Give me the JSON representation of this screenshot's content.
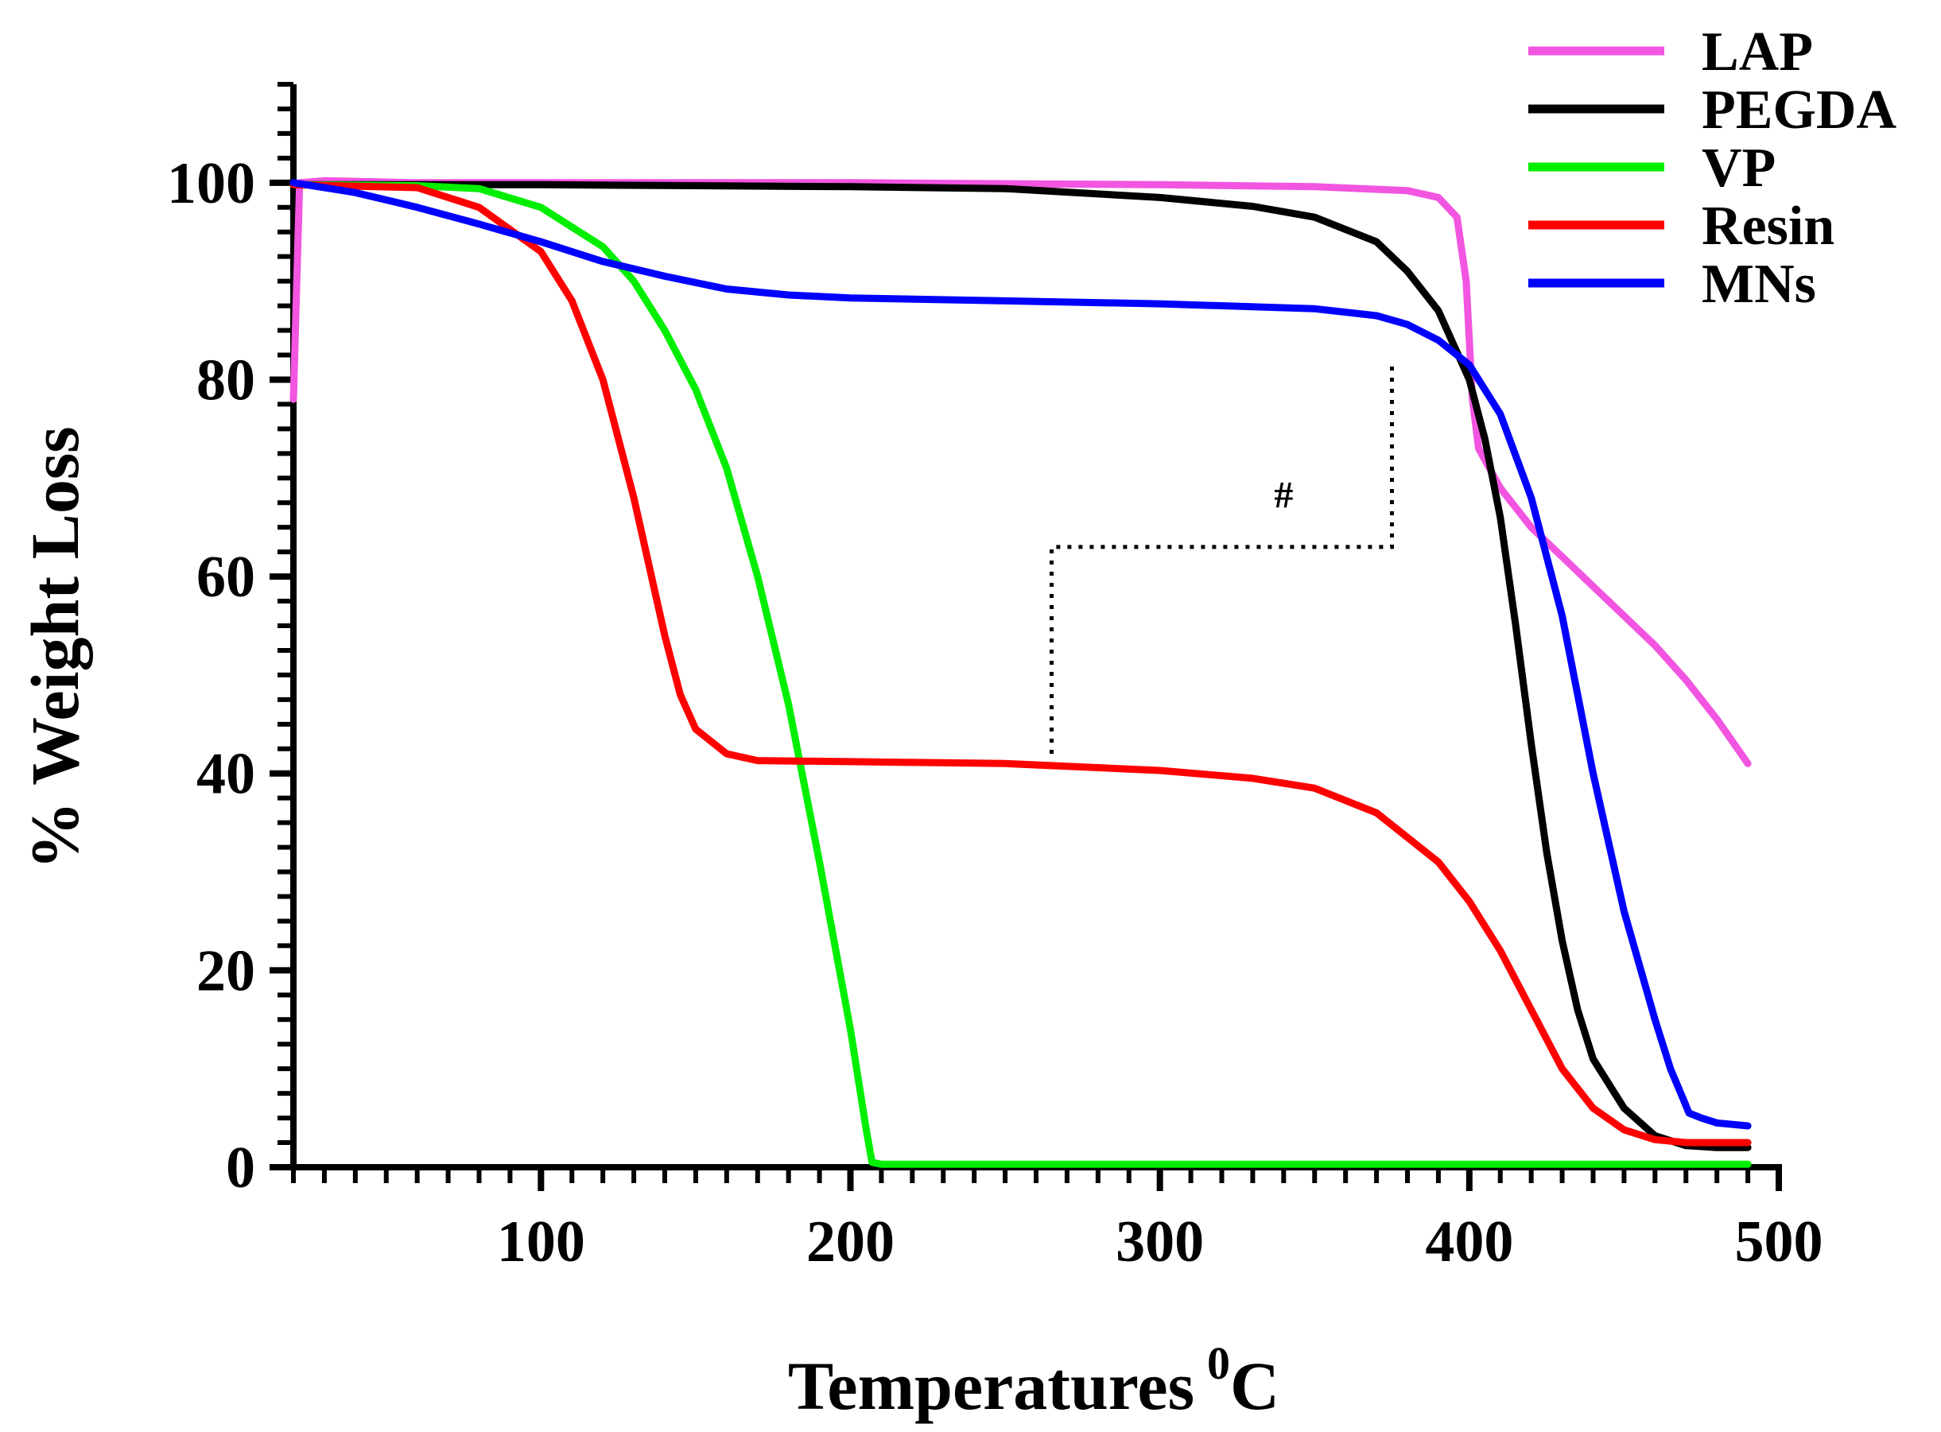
{
  "chart_data": {
    "type": "line",
    "title": "",
    "xlabel": "Temperatures",
    "xlabel_superscript": "0",
    "xlabel_unit": "C",
    "ylabel": "% Weight Loss",
    "xlim": [
      20,
      500
    ],
    "ylim": [
      0,
      110
    ],
    "x_ticks": [
      100,
      200,
      300,
      400,
      500
    ],
    "y_ticks": [
      0,
      20,
      40,
      60,
      80,
      100
    ],
    "grid": false,
    "legend_position": "top-right",
    "series": [
      {
        "name": "LAP",
        "color": "#f255e0",
        "points": [
          [
            20,
            78
          ],
          [
            22,
            100
          ],
          [
            30,
            100.2
          ],
          [
            60,
            100
          ],
          [
            100,
            100
          ],
          [
            200,
            100
          ],
          [
            300,
            99.8
          ],
          [
            350,
            99.6
          ],
          [
            380,
            99.2
          ],
          [
            390,
            98.5
          ],
          [
            396,
            96.5
          ],
          [
            399,
            90
          ],
          [
            400,
            84
          ],
          [
            401,
            78
          ],
          [
            403,
            73
          ],
          [
            410,
            69
          ],
          [
            420,
            65
          ],
          [
            430,
            62
          ],
          [
            440,
            59
          ],
          [
            450,
            56
          ],
          [
            460,
            53
          ],
          [
            470,
            49.5
          ],
          [
            480,
            45.5
          ],
          [
            490,
            41
          ]
        ]
      },
      {
        "name": "PEGDA",
        "color": "#000000",
        "points": [
          [
            20,
            99.8
          ],
          [
            50,
            99.8
          ],
          [
            100,
            99.8
          ],
          [
            200,
            99.6
          ],
          [
            250,
            99.4
          ],
          [
            300,
            98.5
          ],
          [
            330,
            97.6
          ],
          [
            350,
            96.5
          ],
          [
            370,
            94
          ],
          [
            380,
            91
          ],
          [
            390,
            87
          ],
          [
            400,
            80
          ],
          [
            405,
            74
          ],
          [
            410,
            66
          ],
          [
            415,
            55
          ],
          [
            420,
            43
          ],
          [
            425,
            32
          ],
          [
            430,
            23
          ],
          [
            435,
            16
          ],
          [
            440,
            11
          ],
          [
            450,
            6
          ],
          [
            460,
            3.2
          ],
          [
            470,
            2.2
          ],
          [
            480,
            2
          ],
          [
            490,
            2
          ]
        ]
      },
      {
        "name": "VP",
        "color": "#00ee00",
        "points": [
          [
            20,
            99.8
          ],
          [
            60,
            99.7
          ],
          [
            80,
            99.4
          ],
          [
            100,
            97.5
          ],
          [
            120,
            93.5
          ],
          [
            130,
            90
          ],
          [
            140,
            85
          ],
          [
            150,
            79
          ],
          [
            160,
            71
          ],
          [
            170,
            60
          ],
          [
            180,
            47
          ],
          [
            190,
            31
          ],
          [
            200,
            14
          ],
          [
            205,
            4
          ],
          [
            207,
            0.5
          ],
          [
            210,
            0.3
          ],
          [
            300,
            0.3
          ],
          [
            400,
            0.3
          ],
          [
            490,
            0.3
          ]
        ]
      },
      {
        "name": "Resin",
        "color": "#ff0000",
        "points": [
          [
            20,
            99.8
          ],
          [
            60,
            99.5
          ],
          [
            80,
            97.5
          ],
          [
            100,
            93
          ],
          [
            110,
            88
          ],
          [
            120,
            80
          ],
          [
            130,
            68
          ],
          [
            140,
            54
          ],
          [
            145,
            48
          ],
          [
            150,
            44.5
          ],
          [
            160,
            42
          ],
          [
            170,
            41.3
          ],
          [
            200,
            41.2
          ],
          [
            250,
            41
          ],
          [
            300,
            40.3
          ],
          [
            330,
            39.5
          ],
          [
            350,
            38.5
          ],
          [
            370,
            36
          ],
          [
            390,
            31
          ],
          [
            400,
            27
          ],
          [
            410,
            22
          ],
          [
            420,
            16
          ],
          [
            430,
            10
          ],
          [
            440,
            6
          ],
          [
            450,
            3.8
          ],
          [
            460,
            2.8
          ],
          [
            470,
            2.5
          ],
          [
            490,
            2.5
          ]
        ]
      },
      {
        "name": "MNs",
        "color": "#0000ff",
        "points": [
          [
            20,
            100
          ],
          [
            40,
            99
          ],
          [
            60,
            97.5
          ],
          [
            80,
            95.8
          ],
          [
            100,
            94
          ],
          [
            120,
            92
          ],
          [
            140,
            90.5
          ],
          [
            160,
            89.2
          ],
          [
            180,
            88.6
          ],
          [
            200,
            88.3
          ],
          [
            250,
            88
          ],
          [
            300,
            87.7
          ],
          [
            350,
            87.2
          ],
          [
            370,
            86.5
          ],
          [
            380,
            85.6
          ],
          [
            390,
            84
          ],
          [
            400,
            81.5
          ],
          [
            410,
            76.5
          ],
          [
            420,
            68
          ],
          [
            430,
            56
          ],
          [
            440,
            40
          ],
          [
            450,
            26
          ],
          [
            460,
            15
          ],
          [
            465,
            10
          ],
          [
            469,
            7
          ],
          [
            471,
            5.5
          ],
          [
            475,
            5
          ],
          [
            480,
            4.5
          ],
          [
            490,
            4.2
          ]
        ]
      }
    ],
    "annotations": [
      {
        "text": "#",
        "bracket": [
          [
            265,
            42
          ],
          [
            265,
            63
          ],
          [
            375,
            63
          ],
          [
            375,
            82
          ]
        ],
        "text_at": [
          340,
          67
        ]
      }
    ]
  }
}
